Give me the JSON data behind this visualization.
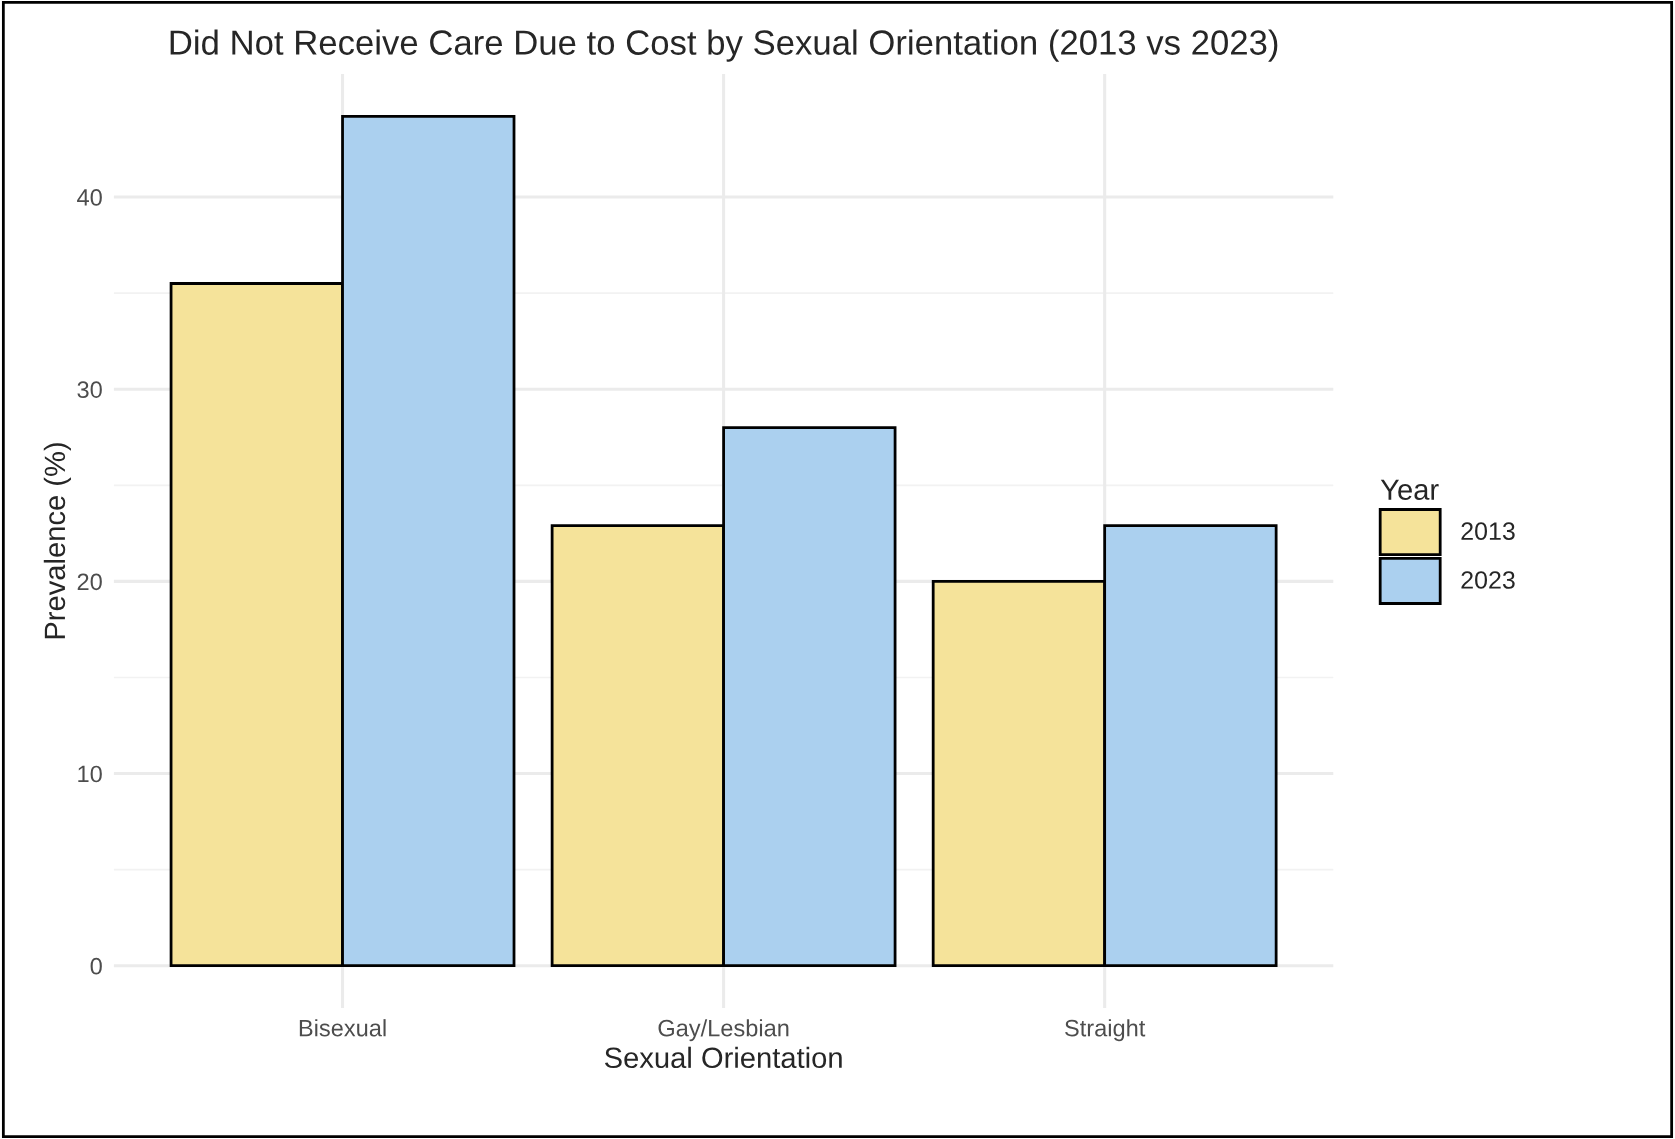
{
  "chart_data": {
    "type": "bar",
    "title": "Did Not Receive Care Due to Cost by Sexual Orientation (2013 vs 2023)",
    "xlabel": "Sexual Orientation",
    "ylabel": "Prevalence (%)",
    "legend_title": "Year",
    "categories": [
      "Bisexual",
      "Gay/Lesbian",
      "Straight"
    ],
    "series": [
      {
        "name": "2013",
        "color": "#f5e39a",
        "values": [
          35.5,
          22.9,
          20.0
        ]
      },
      {
        "name": "2023",
        "color": "#abd0ef",
        "values": [
          44.2,
          28.0,
          22.9
        ]
      }
    ],
    "ylim": [
      -2.2,
      46.4
    ],
    "yticks": [
      0,
      10,
      20,
      30,
      40
    ],
    "grid": true,
    "legend": "right"
  }
}
